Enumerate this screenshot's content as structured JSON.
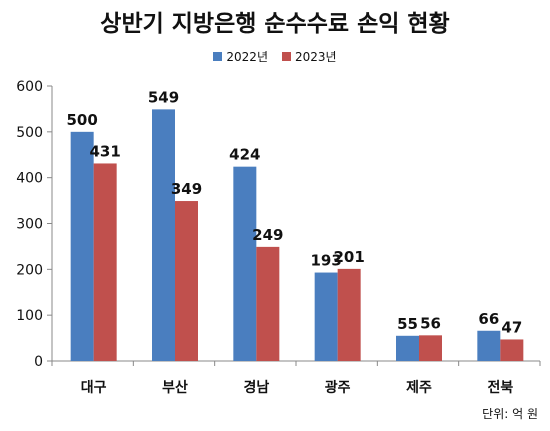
{
  "chart_data": {
    "type": "bar",
    "title": "상반기 지방은행 순수수료 손익 현황",
    "categories": [
      "대구",
      "부산",
      "경남",
      "광주",
      "제주",
      "전북"
    ],
    "series": [
      {
        "name": "2022년",
        "color": "#4a7ebf",
        "values": [
          500,
          549,
          424,
          193,
          55,
          66
        ]
      },
      {
        "name": "2023년",
        "color": "#c0504d",
        "values": [
          431,
          349,
          249,
          201,
          56,
          47
        ]
      }
    ],
    "ylim": [
      0,
      600
    ],
    "yticks": [
      0,
      100,
      200,
      300,
      400,
      500,
      600
    ],
    "legend_position": "top-center",
    "grid": false,
    "unit_note": "단위: 억 원"
  }
}
